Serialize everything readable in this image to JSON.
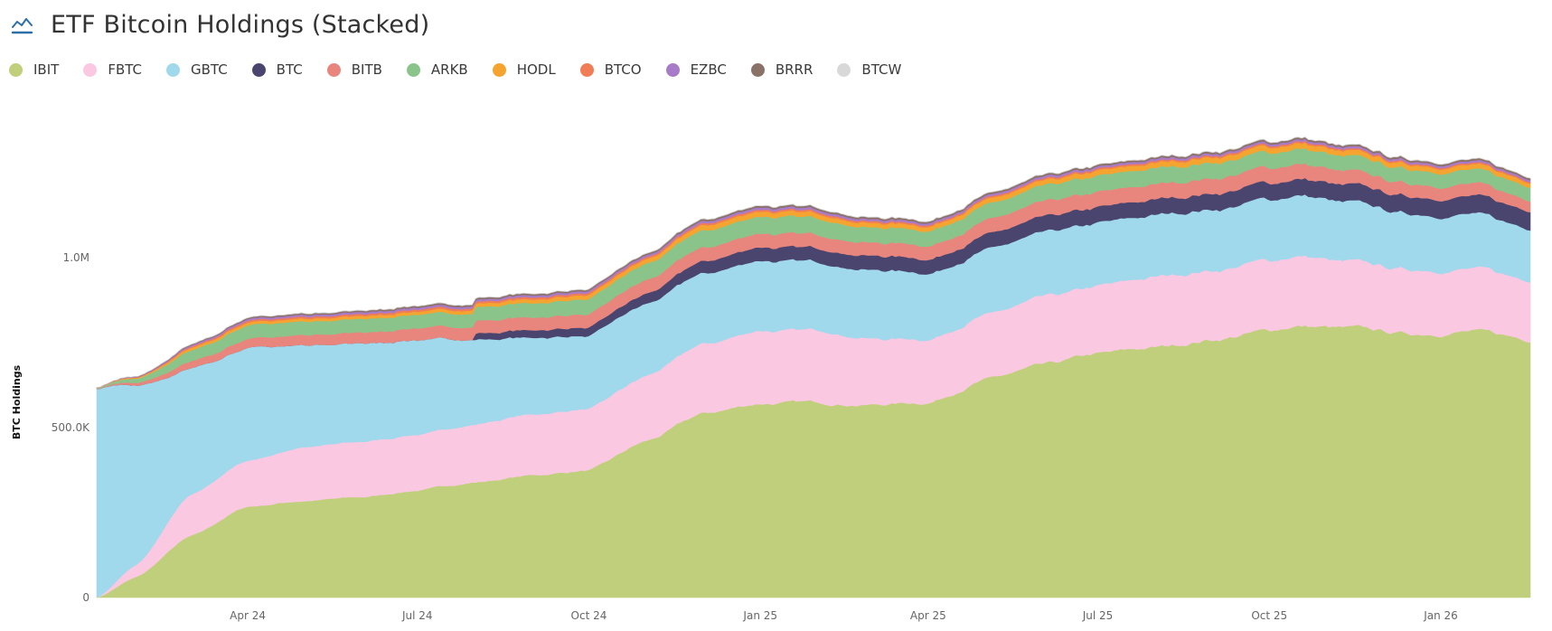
{
  "header": {
    "title": "ETF Bitcoin Holdings (Stacked)",
    "icon": "line-chart-icon",
    "icon_color": "#2a6fa8"
  },
  "chart_data": {
    "type": "area",
    "stacked": true,
    "title": "ETF Bitcoin Holdings (Stacked)",
    "xlabel": "",
    "ylabel": "BTC Holdings",
    "ylim": [
      0,
      1450000
    ],
    "yticks": [
      {
        "value": 0,
        "label": "0"
      },
      {
        "value": 500000,
        "label": "500.0K"
      },
      {
        "value": 1000000,
        "label": "1.0M"
      }
    ],
    "xticks": [
      {
        "value": "2024-04-01",
        "label": "Apr 24"
      },
      {
        "value": "2024-07-01",
        "label": "Jul 24"
      },
      {
        "value": "2024-10-01",
        "label": "Oct 24"
      },
      {
        "value": "2025-01-01",
        "label": "Jan 25"
      },
      {
        "value": "2025-04-01",
        "label": "Apr 25"
      },
      {
        "value": "2025-07-01",
        "label": "Jul 25"
      },
      {
        "value": "2025-10-01",
        "label": "Oct 25"
      },
      {
        "value": "2026-01-01",
        "label": "Jan 26"
      }
    ],
    "xrange": [
      "2024-01-11",
      "2026-02-18"
    ],
    "grid": false,
    "legend_position": "top-left",
    "x": [
      "2024-01-11",
      "2024-02-01",
      "2024-03-01",
      "2024-04-01",
      "2024-05-01",
      "2024-06-01",
      "2024-07-01",
      "2024-08-01",
      "2024-09-01",
      "2024-10-01",
      "2024-11-01",
      "2024-12-01",
      "2025-01-01",
      "2025-02-01",
      "2025-03-01",
      "2025-04-01",
      "2025-05-01",
      "2025-06-01",
      "2025-07-01",
      "2025-08-01",
      "2025-09-01",
      "2025-10-01",
      "2025-10-15",
      "2025-11-15",
      "2025-12-15",
      "2026-01-15",
      "2026-02-18"
    ],
    "series": [
      {
        "name": "IBIT",
        "color": "#c0cf7c",
        "values": [
          0,
          60000,
          180000,
          268000,
          285000,
          295000,
          316000,
          340000,
          360000,
          375000,
          460000,
          540000,
          572000,
          574000,
          568000,
          575000,
          640000,
          680000,
          715000,
          735000,
          760000,
          785000,
          800000,
          790000,
          775000,
          785000,
          760000
        ]
      },
      {
        "name": "FBTC",
        "color": "#fbc8e2",
        "values": [
          0,
          35000,
          120000,
          134000,
          158000,
          162000,
          165000,
          172000,
          178000,
          180000,
          190000,
          205000,
          213000,
          213000,
          195000,
          185000,
          190000,
          198000,
          200000,
          205000,
          203000,
          205000,
          208000,
          195000,
          190000,
          185000,
          175000
        ]
      },
      {
        "name": "GBTC",
        "color": "#a0d8ec",
        "values": [
          618000,
          530000,
          370000,
          332000,
          300000,
          290000,
          279000,
          250000,
          225000,
          215000,
          210000,
          208000,
          207000,
          200000,
          200000,
          195000,
          190000,
          188000,
          185000,
          182000,
          180000,
          178000,
          178000,
          172000,
          165000,
          160000,
          152000
        ]
      },
      {
        "name": "BTC",
        "color": "#4a456e",
        "values": [
          0,
          0,
          0,
          0,
          0,
          0,
          0,
          18000,
          22000,
          25000,
          30000,
          36000,
          40000,
          40000,
          42000,
          42000,
          44000,
          45000,
          46000,
          46000,
          47000,
          48000,
          48000,
          50000,
          51000,
          52000,
          53000
        ]
      },
      {
        "name": "BITB",
        "color": "#e8867e",
        "values": [
          1000,
          8000,
          20000,
          26000,
          30000,
          32000,
          35000,
          37000,
          38000,
          39000,
          40000,
          40000,
          40000,
          40000,
          39000,
          40000,
          42000,
          44000,
          45000,
          45000,
          45000,
          45000,
          45000,
          40000,
          38000,
          36000,
          32000
        ]
      },
      {
        "name": "ARKB",
        "color": "#8bc48b",
        "values": [
          1500,
          12000,
          32000,
          40000,
          40000,
          40000,
          40000,
          40000,
          42000,
          45000,
          48000,
          50000,
          50000,
          48000,
          44000,
          44000,
          45000,
          46000,
          47000,
          47000,
          46000,
          45000,
          45000,
          43000,
          42000,
          41000,
          40000
        ]
      },
      {
        "name": "HODL",
        "color": "#f5a52f",
        "values": [
          500,
          2500,
          7000,
          8000,
          8000,
          8500,
          9000,
          10000,
          11000,
          12000,
          13000,
          15000,
          15000,
          14000,
          13000,
          13000,
          14000,
          14000,
          15000,
          15000,
          16000,
          16000,
          16000,
          15000,
          14000,
          14000,
          13000
        ]
      },
      {
        "name": "BTCO",
        "color": "#f07d56",
        "values": [
          300,
          1500,
          4000,
          5500,
          5500,
          5500,
          6000,
          6000,
          6000,
          6000,
          5500,
          5500,
          5500,
          5500,
          5000,
          5000,
          5000,
          5000,
          5000,
          5000,
          5000,
          5000,
          5000,
          4800,
          4600,
          4500,
          4400
        ]
      },
      {
        "name": "EZBC",
        "color": "#a77bc8",
        "values": [
          200,
          1500,
          4000,
          5000,
          5500,
          6000,
          6000,
          6000,
          6000,
          6000,
          6000,
          6500,
          6500,
          6500,
          6000,
          6000,
          6000,
          6000,
          6000,
          6000,
          6000,
          6000,
          6000,
          6000,
          5800,
          5800,
          5700
        ]
      },
      {
        "name": "BRRR",
        "color": "#8b7268",
        "values": [
          100,
          800,
          2500,
          3500,
          4000,
          4000,
          4500,
          4500,
          4500,
          4500,
          4500,
          5000,
          5000,
          5000,
          5000,
          5000,
          5000,
          5000,
          5000,
          5000,
          5000,
          5000,
          5000,
          5000,
          5000,
          5000,
          5000
        ]
      },
      {
        "name": "BTCW",
        "color": "#d8d8d8",
        "values": [
          50,
          300,
          600,
          700,
          700,
          750,
          750,
          750,
          800,
          800,
          800,
          800,
          800,
          800,
          800,
          800,
          800,
          800,
          800,
          800,
          800,
          800,
          800,
          800,
          800,
          800,
          800
        ]
      }
    ]
  }
}
